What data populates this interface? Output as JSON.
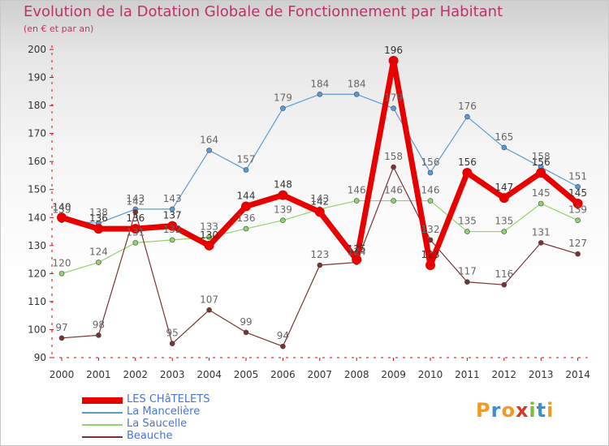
{
  "title": "Evolution de la Dotation Globale de Fonctionnement par Habitant",
  "subtitle": "(en € et par an)",
  "logo": {
    "letters": [
      "P",
      "r",
      "o",
      "x",
      "i",
      "t",
      "i"
    ],
    "colors": [
      "#f29a1f",
      "#3c8fd6",
      "#f29a1f",
      "#d23a2a",
      "#7cbd2b",
      "#3c8fd6",
      "#f29a1f"
    ]
  },
  "colors": {
    "title": "#c0306a",
    "axis": "#e00000",
    "legend_text": "#4a74d6"
  },
  "chart_data": {
    "type": "line",
    "categories": [
      "2000",
      "2001",
      "2002",
      "2003",
      "2004",
      "2005",
      "2006",
      "2007",
      "2008",
      "2009",
      "2010",
      "2011",
      "2012",
      "2013",
      "2014"
    ],
    "ylim": [
      90,
      200
    ],
    "yticks": [
      90,
      100,
      110,
      120,
      130,
      140,
      150,
      160,
      170,
      180,
      190,
      200
    ],
    "grid": false,
    "legend": "bottom-left",
    "series": [
      {
        "name": "LES CHâTELETS",
        "color": "#e80000",
        "width": 7,
        "marker_r": 6,
        "label_color": "#333333",
        "values": [
          140,
          136,
          136,
          137,
          130,
          144,
          148,
          142,
          125,
          196,
          123,
          156,
          147,
          156,
          145
        ]
      },
      {
        "name": "La Mancelière",
        "color": "#5b9bd5",
        "width": 1.2,
        "marker_r": 3,
        "label_color": "#666666",
        "values": [
          139,
          138,
          143,
          143,
          164,
          157,
          179,
          184,
          184,
          179,
          156,
          176,
          165,
          158,
          151
        ]
      },
      {
        "name": "La Saucelle",
        "color": "#8fd46a",
        "width": 1.2,
        "marker_r": 3,
        "label_color": "#666666",
        "values": [
          120,
          124,
          131,
          132,
          133,
          136,
          139,
          143,
          146,
          146,
          146,
          135,
          135,
          145,
          139
        ]
      },
      {
        "name": "Beauche",
        "color": "#7a3232",
        "width": 1.2,
        "marker_r": 3,
        "label_color": "#666666",
        "values": [
          97,
          98,
          142,
          95,
          107,
          99,
          94,
          123,
          124,
          158,
          132,
          117,
          116,
          131,
          127
        ]
      }
    ]
  }
}
